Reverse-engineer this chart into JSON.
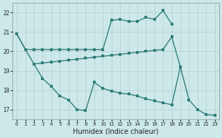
{
  "xlabel": "Humidex (Indice chaleur)",
  "bg_color": "#cce8e8",
  "grid_color": "#b0cccc",
  "line_color": "#2e7d78",
  "xlim": [
    -0.5,
    23.5
  ],
  "ylim": [
    16.5,
    22.5
  ],
  "yticks": [
    17,
    18,
    19,
    20,
    21,
    22
  ],
  "xticks": [
    0,
    1,
    2,
    3,
    4,
    5,
    6,
    7,
    8,
    9,
    10,
    11,
    12,
    13,
    14,
    15,
    16,
    17,
    18,
    19,
    20,
    21,
    22,
    23
  ],
  "line1_x": [
    0,
    1,
    2,
    3,
    4,
    5,
    6,
    7,
    8,
    9,
    10,
    11,
    12,
    13,
    14,
    15,
    16,
    17,
    18
  ],
  "line1_y": [
    20.9,
    20.1,
    20.1,
    20.1,
    20.1,
    20.1,
    20.1,
    20.1,
    20.1,
    20.1,
    20.1,
    21.6,
    21.65,
    21.55,
    21.55,
    21.75,
    21.65,
    22.1,
    21.4
  ],
  "line2_x": [
    0,
    1,
    2,
    3,
    4,
    5,
    6,
    7,
    8,
    9,
    10,
    11,
    12,
    13,
    14,
    15,
    16,
    17,
    18,
    19
  ],
  "line2_y": [
    20.9,
    20.1,
    19.35,
    19.4,
    19.45,
    19.5,
    19.55,
    19.6,
    19.65,
    19.7,
    19.75,
    19.8,
    19.85,
    19.9,
    19.95,
    20.0,
    20.05,
    20.1,
    20.75,
    19.2
  ],
  "line3_x": [
    2,
    3,
    4,
    5,
    6,
    7,
    8,
    9,
    10,
    11,
    12,
    13,
    14,
    15,
    16,
    17,
    18,
    19,
    20,
    21,
    22,
    23
  ],
  "line3_y": [
    19.35,
    18.6,
    18.2,
    17.7,
    17.5,
    17.0,
    16.95,
    18.4,
    18.1,
    17.95,
    17.85,
    17.8,
    17.7,
    17.55,
    17.45,
    17.35,
    17.25,
    19.2,
    17.5,
    17.0,
    16.75,
    16.7
  ]
}
